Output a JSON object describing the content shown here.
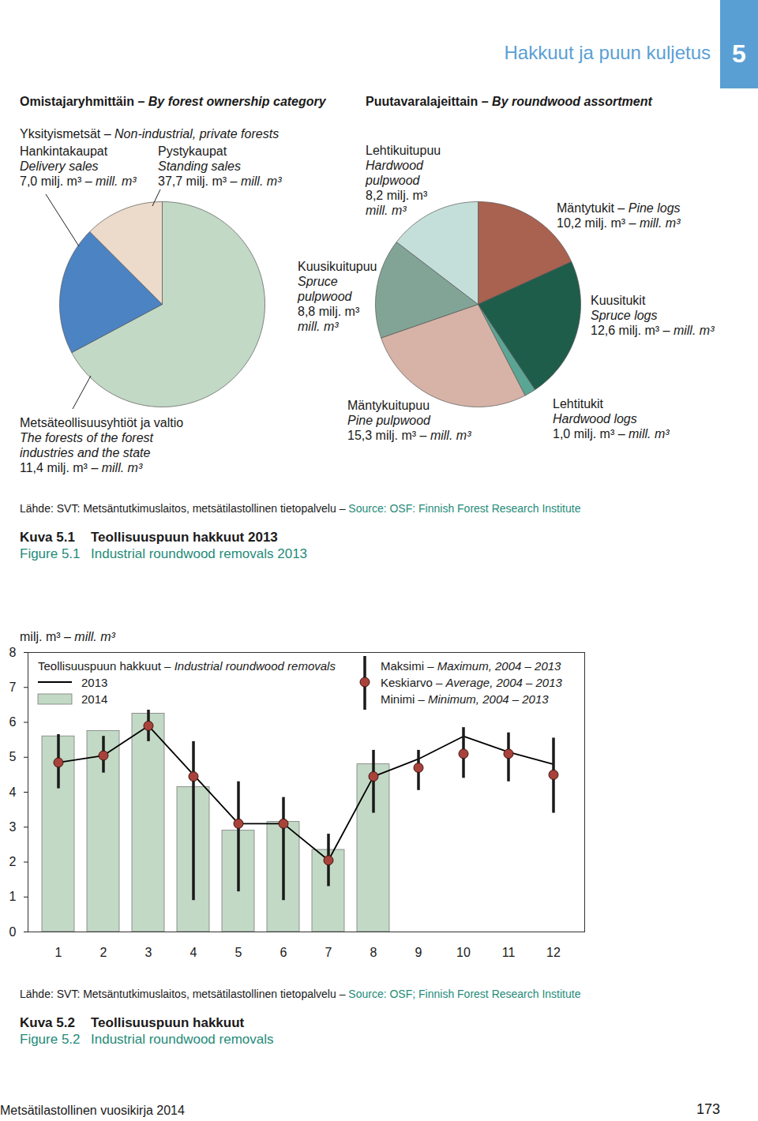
{
  "header": {
    "title": "Hakkuut ja puun kuljetus",
    "chapter": 5
  },
  "separator": " – ",
  "chart_data": [
    {
      "type": "pie",
      "title": "Omistajaryhmittäin – By forest ownership category",
      "group_label": "Yksityismetsät – Non-industrial, private forests",
      "categories": [
        "Pystykaupat",
        "Metsäteollisuusyhtiöt ja valtio",
        "Hankintakaupat"
      ],
      "category_translations": [
        "Standing sales",
        "The forests of the forest\nindustries and the state",
        "Delivery sales"
      ],
      "values": [
        37.7,
        11.4,
        7.0
      ],
      "value_labels": [
        "37,7 milj. m³ – mill. m³",
        "11,4 milj. m³ – mill. m³",
        "7,0 milj. m³ – mill. m³"
      ],
      "colors": [
        "#c2d9c5",
        "#4c83c3",
        "#ecdacb"
      ]
    },
    {
      "type": "pie",
      "title": "Puutavaralajeittain – By roundwood assortment",
      "categories": [
        "Mäntytukit",
        "Kuusitukit",
        "Lehtitukit",
        "Mäntykuitupuu",
        "Kuusikuitupuu",
        "Lehtikuitupuu"
      ],
      "category_translations": [
        "Pine logs",
        "Spruce logs",
        "Hardwood logs",
        "Pine pulpwood",
        "Spruce\npulpwood",
        "Hardwood\npulpwood"
      ],
      "values": [
        10.2,
        12.6,
        1.0,
        15.3,
        8.8,
        8.2
      ],
      "value_labels": [
        "10,2 milj. m³ – mill. m³",
        "12,6 milj. m³ – mill. m³",
        "1,0 milj. m³ – mill. m³",
        "15,3 milj. m³ – mill. m³",
        "8,8 milj. m³\nmill. m³",
        "8,2 milj. m³\nmill. m³"
      ],
      "colors": [
        "#a9624f",
        "#1f5d4b",
        "#5ba594",
        "#d6b3a6",
        "#82a496",
        "#c4dfd9"
      ]
    },
    {
      "type": "bar",
      "y_label": "milj. m³ – mill. m³",
      "legend_title": "Teollisuuspuun hakkuut – Industrial roundwood removals",
      "legend": "top",
      "categories": [
        1,
        2,
        3,
        4,
        5,
        6,
        7,
        8,
        9,
        10,
        11,
        12
      ],
      "ylim": [
        0,
        8
      ],
      "yticks": [
        0,
        1,
        2,
        3,
        4,
        5,
        6,
        7,
        8
      ],
      "series": [
        {
          "name": "2013",
          "type": "line",
          "color": "#000000",
          "values": [
            4.85,
            5.05,
            5.9,
            4.5,
            3.1,
            3.1,
            2.05,
            4.45,
            4.95,
            5.6,
            5.15,
            4.8
          ]
        },
        {
          "name": "2014",
          "type": "bar",
          "color": "#c2d9c5",
          "values": [
            5.6,
            5.75,
            6.25,
            4.15,
            2.9,
            3.15,
            2.35,
            4.8,
            null,
            null,
            null,
            null
          ]
        }
      ],
      "range": {
        "name": "Keskiarvo – Average, 2004 – 2013",
        "max_name": "Maksimi – Maximum, 2004 – 2013",
        "min_name": "Minimi – Minimum, 2004 – 2013",
        "color": "#a8423a",
        "mean": [
          4.85,
          5.05,
          5.9,
          4.45,
          3.1,
          3.1,
          2.05,
          4.45,
          4.7,
          5.1,
          5.1,
          4.5
        ],
        "max": [
          5.65,
          5.6,
          6.35,
          5.45,
          4.3,
          3.85,
          2.8,
          5.2,
          5.2,
          5.85,
          5.7,
          5.55
        ],
        "min": [
          4.1,
          4.55,
          5.45,
          0.9,
          1.15,
          0.9,
          1.3,
          3.4,
          4.05,
          4.4,
          4.3,
          3.4
        ]
      }
    }
  ],
  "figures": [
    {
      "source": "Lähde: SVT: Metsäntutkimuslaitos, metsätilastollinen tietopalvelu – Source: OSF: Finnish Forest Research Institute",
      "number_fi": "Kuva 5.1",
      "title_fi": "Teollisuuspuun hakkuut 2013",
      "number_en": "Figure 5.1",
      "title_en": "Industrial roundwood removals 2013"
    },
    {
      "source": "Lähde: SVT: Metsäntutkimuslaitos, metsätilastollinen tietopalvelu – Source: OSF; Finnish Forest Research Institute",
      "number_fi": "Kuva 5.2",
      "title_fi": "Teollisuuspuun hakkuut",
      "number_en": "Figure 5.2",
      "title_en": "Industrial roundwood removals"
    }
  ],
  "footer": {
    "publication": "Metsätilastollinen vuosikirja 2014",
    "page": 173
  }
}
